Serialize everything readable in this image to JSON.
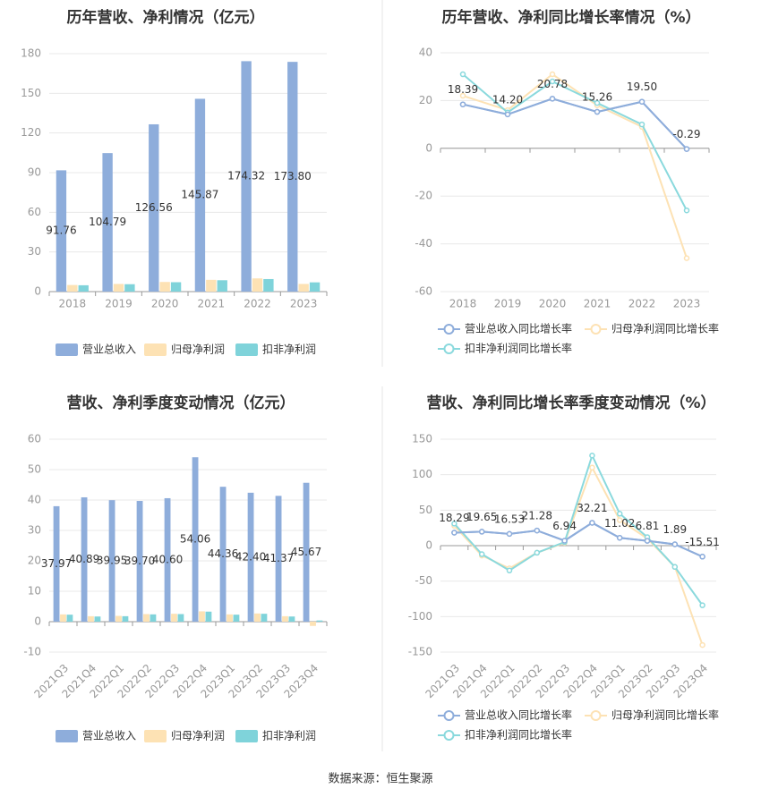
{
  "source": "数据来源：恒生聚源",
  "colors": {
    "revenue": "#8eaddb",
    "net_profit": "#fde2b4",
    "deducted_profit": "#7fd3da",
    "revenue_line": "#8eaddb",
    "net_profit_line": "#fde2b4",
    "deducted_line": "#8ad9dd",
    "grid": "#e8e8e8",
    "axis": "#999999",
    "divider": "#e5e5e5"
  },
  "chart_data": [
    {
      "id": "annual-amount",
      "type": "bar",
      "title": "历年营收、净利情况（亿元）",
      "categories": [
        "2018",
        "2019",
        "2020",
        "2021",
        "2022",
        "2023"
      ],
      "ylim": [
        0,
        180
      ],
      "yticks": [
        0,
        30,
        60,
        90,
        120,
        150,
        180
      ],
      "series": [
        {
          "name": "营业总收入",
          "values": [
            91.76,
            104.79,
            126.56,
            145.87,
            174.32,
            173.8
          ],
          "labels": [
            "91.76",
            "104.79",
            "126.56",
            "145.87",
            "174.32",
            "173.80"
          ]
        },
        {
          "name": "归母净利润",
          "values": [
            5.0,
            5.8,
            7.3,
            8.9,
            10.0,
            5.8
          ]
        },
        {
          "name": "扣非净利润",
          "values": [
            4.8,
            5.6,
            7.1,
            8.6,
            9.5,
            7.0
          ]
        }
      ]
    },
    {
      "id": "annual-growth",
      "type": "line",
      "title": "历年营收、净利同比增长率情况（%）",
      "categories": [
        "2018",
        "2019",
        "2020",
        "2021",
        "2022",
        "2023"
      ],
      "ylim": [
        -60,
        40
      ],
      "yticks": [
        -60,
        -40,
        -20,
        0,
        20,
        40
      ],
      "series": [
        {
          "name": "营业总收入同比增长率",
          "values": [
            18.39,
            14.2,
            20.78,
            15.26,
            19.5,
            -0.29
          ],
          "labels": [
            "18.39",
            "14.20",
            "20.78",
            "15.26",
            "19.50",
            "-0.29"
          ]
        },
        {
          "name": "归母净利润同比增长率",
          "values": [
            22,
            16,
            31,
            18,
            9,
            -46
          ]
        },
        {
          "name": "扣非净利润同比增长率",
          "values": [
            31,
            15,
            28,
            19,
            10,
            -26
          ]
        }
      ]
    },
    {
      "id": "quarterly-amount",
      "type": "bar",
      "title": "营收、净利季度变动情况（亿元）",
      "categories": [
        "2021Q3",
        "2021Q4",
        "2022Q1",
        "2022Q2",
        "2022Q3",
        "2022Q4",
        "2023Q1",
        "2023Q2",
        "2023Q3",
        "2023Q4"
      ],
      "ylim": [
        -10,
        60
      ],
      "yticks": [
        -10,
        0,
        10,
        20,
        30,
        40,
        50,
        60
      ],
      "series": [
        {
          "name": "营业总收入",
          "values": [
            37.97,
            40.89,
            39.95,
            39.7,
            40.6,
            54.06,
            44.36,
            42.4,
            41.37,
            45.67
          ],
          "labels": [
            "37.97",
            "40.89",
            "39.95",
            "39.70",
            "40.60",
            "54.06",
            "44.36",
            "42.40",
            "41.37",
            "45.67"
          ]
        },
        {
          "name": "归母净利润",
          "values": [
            2.4,
            1.8,
            1.9,
            2.5,
            2.6,
            3.4,
            2.4,
            2.7,
            1.8,
            -1.4
          ]
        },
        {
          "name": "扣非净利润",
          "values": [
            2.3,
            1.7,
            1.8,
            2.4,
            2.5,
            3.3,
            2.3,
            2.6,
            1.7,
            0.4
          ]
        }
      ]
    },
    {
      "id": "quarterly-growth",
      "type": "line",
      "title": "营收、净利同比增长率季度变动情况（%）",
      "categories": [
        "2021Q3",
        "2021Q4",
        "2022Q1",
        "2022Q2",
        "2022Q3",
        "2022Q4",
        "2023Q1",
        "2023Q2",
        "2023Q3",
        "2023Q4"
      ],
      "ylim": [
        -150,
        150
      ],
      "yticks": [
        -150,
        -100,
        -50,
        0,
        50,
        100,
        150
      ],
      "series": [
        {
          "name": "营业总收入同比增长率",
          "values": [
            18.29,
            19.65,
            16.53,
            21.28,
            6.94,
            32.21,
            11.02,
            6.81,
            1.89,
            -15.51
          ],
          "labels": [
            "18.29",
            "19.65",
            "16.53",
            "21.28",
            "6.94",
            "32.21",
            "11.02",
            "6.81",
            "1.89",
            "-15.51"
          ]
        },
        {
          "name": "归母净利润同比增长率",
          "values": [
            28,
            -14,
            -32,
            -10,
            4,
            110,
            36,
            10,
            -30,
            -140
          ]
        },
        {
          "name": "扣非净利润同比增长率",
          "values": [
            31,
            -12,
            -35,
            -10,
            5,
            127,
            45,
            12,
            -30,
            -84
          ]
        }
      ]
    }
  ]
}
